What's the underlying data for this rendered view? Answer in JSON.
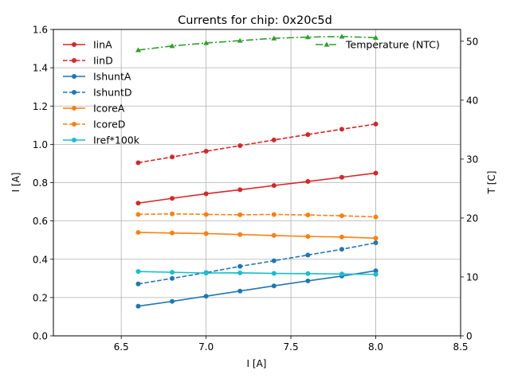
{
  "chart_data": {
    "type": "line",
    "title": "Currents for chip: 0x20c5d",
    "xlabel": "I [A]",
    "ylabel": "I [A]",
    "y2label": "T [C]",
    "xlim": [
      6.1,
      8.5
    ],
    "ylim": [
      0.0,
      1.6
    ],
    "y2lim": [
      0,
      52
    ],
    "xticks": [
      6.5,
      7.0,
      7.5,
      8.0,
      8.5
    ],
    "yticks": [
      0.0,
      0.2,
      0.4,
      0.6,
      0.8,
      1.0,
      1.2,
      1.4,
      1.6
    ],
    "y2ticks": [
      0,
      10,
      20,
      30,
      40,
      50
    ],
    "grid": true,
    "x": [
      6.6,
      6.8,
      7.0,
      7.2,
      7.4,
      7.6,
      7.8,
      8.0
    ],
    "series": [
      {
        "name": "IinA",
        "color": "#d62728",
        "dash": "solid",
        "marker": "circle",
        "axis": "left",
        "values": [
          0.693,
          0.718,
          0.742,
          0.763,
          0.785,
          0.806,
          0.828,
          0.85
        ]
      },
      {
        "name": "IinD",
        "color": "#d62728",
        "dash": "dashed",
        "marker": "circle",
        "axis": "left",
        "values": [
          0.904,
          0.934,
          0.964,
          0.993,
          1.023,
          1.051,
          1.079,
          1.106
        ]
      },
      {
        "name": "IshuntA",
        "color": "#1f77b4",
        "dash": "solid",
        "marker": "circle",
        "axis": "left",
        "values": [
          0.155,
          0.18,
          0.207,
          0.234,
          0.261,
          0.287,
          0.312,
          0.34
        ]
      },
      {
        "name": "IshuntD",
        "color": "#1f77b4",
        "dash": "dashed",
        "marker": "circle",
        "axis": "left",
        "values": [
          0.271,
          0.3,
          0.33,
          0.363,
          0.392,
          0.422,
          0.452,
          0.486
        ]
      },
      {
        "name": "IcoreA",
        "color": "#ff7f0e",
        "dash": "solid",
        "marker": "circle",
        "axis": "left",
        "values": [
          0.54,
          0.537,
          0.534,
          0.529,
          0.524,
          0.519,
          0.516,
          0.51
        ]
      },
      {
        "name": "IcoreD",
        "color": "#ff7f0e",
        "dash": "dashed",
        "marker": "circle",
        "axis": "left",
        "values": [
          0.634,
          0.637,
          0.634,
          0.632,
          0.634,
          0.631,
          0.627,
          0.621
        ]
      },
      {
        "name": "Iref*100k",
        "color": "#17becf",
        "dash": "solid",
        "marker": "circle",
        "axis": "left",
        "values": [
          0.336,
          0.332,
          0.328,
          0.329,
          0.326,
          0.325,
          0.323,
          0.321
        ]
      },
      {
        "name": "Temperature (NTC)",
        "color": "#2ca02c",
        "dash": "dashdot",
        "marker": "triangle",
        "axis": "right",
        "values": [
          48.5,
          49.2,
          49.7,
          50.1,
          50.5,
          50.7,
          50.8,
          50.6
        ]
      }
    ],
    "legend_left": [
      "IinA",
      "IinD",
      "IshuntA",
      "IshuntD",
      "IcoreA",
      "IcoreD",
      "Iref*100k"
    ],
    "legend_right": [
      "Temperature (NTC)"
    ]
  }
}
